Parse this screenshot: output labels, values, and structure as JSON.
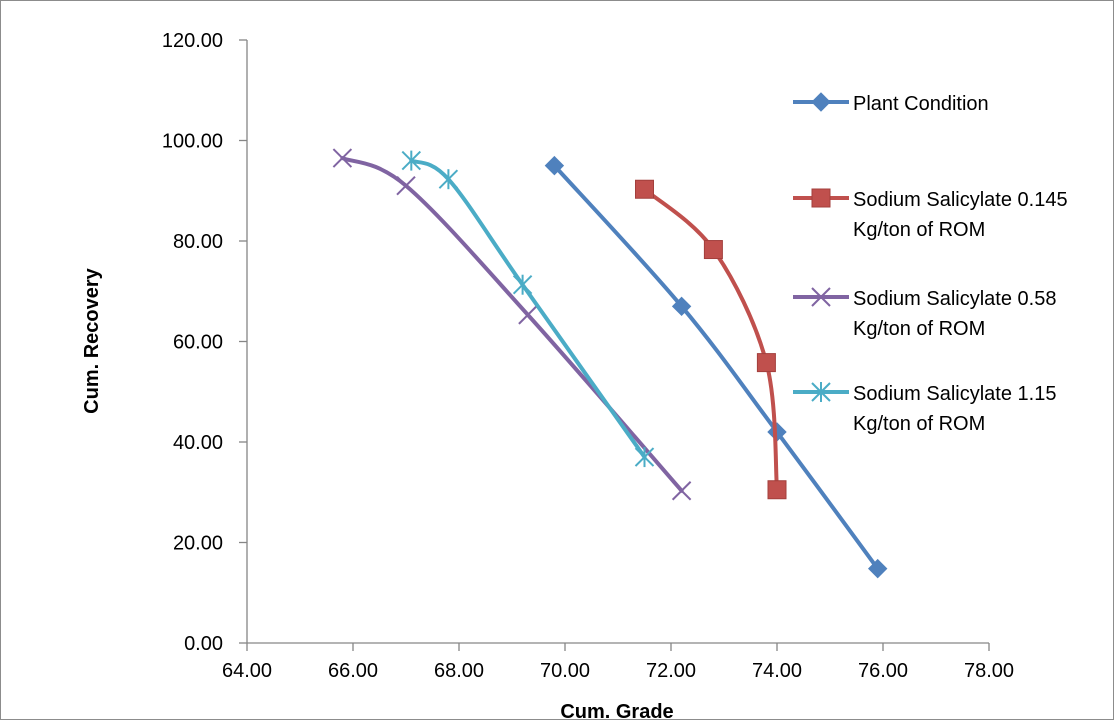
{
  "chart_data": {
    "type": "scatter",
    "xlabel": "Cum. Grade",
    "ylabel": "Cum. Recovery",
    "xlim": [
      64,
      78
    ],
    "ylim": [
      0,
      120
    ],
    "x_ticks": [
      "64.00",
      "66.00",
      "68.00",
      "70.00",
      "72.00",
      "74.00",
      "76.00",
      "78.00"
    ],
    "y_ticks": [
      "0.00",
      "20.00",
      "40.00",
      "60.00",
      "80.00",
      "100.00",
      "120.00"
    ],
    "grid": false,
    "legend_position": "right",
    "series": [
      {
        "name": "Plant Condition",
        "legend_lines": [
          "Plant Condition"
        ],
        "color": "#4f81bd",
        "marker": "diamond",
        "points": [
          [
            69.8,
            95.0
          ],
          [
            72.2,
            67.0
          ],
          [
            74.0,
            42.0
          ],
          [
            75.9,
            14.8
          ]
        ]
      },
      {
        "name": "Sodium Salicylate 0.145 Kg/ton of ROM",
        "legend_lines": [
          "Sodium Salicylate 0.145",
          "Kg/ton of ROM"
        ],
        "color": "#c0504d",
        "marker": "square",
        "points": [
          [
            71.5,
            90.3
          ],
          [
            72.8,
            78.3
          ],
          [
            73.8,
            55.8
          ],
          [
            74.0,
            30.5
          ]
        ]
      },
      {
        "name": "Sodium Salicylate 0.58 Kg/ton of ROM",
        "legend_lines": [
          "Sodium Salicylate 0.58",
          "Kg/ton of ROM"
        ],
        "color": "#8064a2",
        "marker": "x",
        "points": [
          [
            65.8,
            96.5
          ],
          [
            67.0,
            91.0
          ],
          [
            69.3,
            65.3
          ],
          [
            72.2,
            30.3
          ]
        ]
      },
      {
        "name": "Sodium Salicylate 1.15 Kg/ton of ROM",
        "legend_lines": [
          "Sodium Salicylate 1.15",
          "Kg/ton of ROM"
        ],
        "color": "#4bacc6",
        "marker": "star",
        "points": [
          [
            67.1,
            96.0
          ],
          [
            67.8,
            92.3
          ],
          [
            69.2,
            71.3
          ],
          [
            71.5,
            37.0
          ]
        ]
      }
    ]
  }
}
